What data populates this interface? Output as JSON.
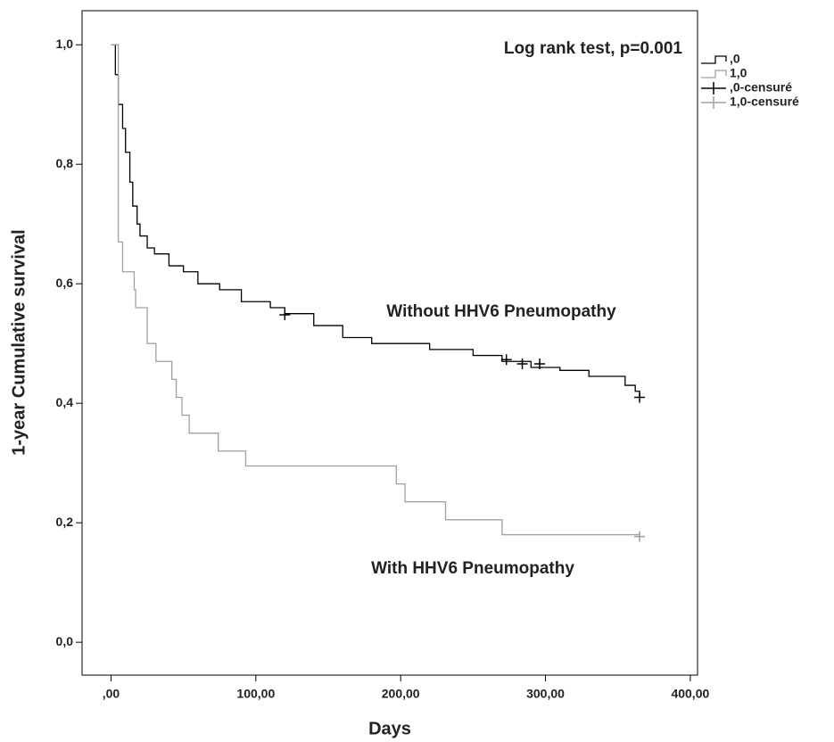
{
  "chart_data": {
    "type": "line",
    "step": true,
    "x_label": "Days",
    "y_label": "1-year Cumulative survival",
    "xlim": [
      -20,
      405
    ],
    "ylim": [
      -0.055,
      1.057
    ],
    "xticks": [
      {
        "value": 0,
        "label": ",00"
      },
      {
        "value": 100,
        "label": "100,00"
      },
      {
        "value": 200,
        "label": "200,00"
      },
      {
        "value": 300,
        "label": "300,00"
      },
      {
        "value": 400,
        "label": "400,00"
      }
    ],
    "yticks": [
      {
        "value": 0,
        "label": "0,0"
      },
      {
        "value": 0.2,
        "label": "0,2"
      },
      {
        "value": 0.4,
        "label": "0,4"
      },
      {
        "value": 0.6,
        "label": "0,6"
      },
      {
        "value": 0.8,
        "label": "0,8"
      },
      {
        "value": 1,
        "label": "1,0"
      }
    ],
    "annotations": [
      "Log rank test, p=0.001",
      "Without HHV6 Pneumopathy",
      "With HHV6 Pneumopathy"
    ],
    "series": [
      {
        "name": ",0",
        "color": "#000000",
        "marker": "step",
        "x": [
          0,
          3,
          5,
          8,
          10,
          13,
          15,
          18,
          20,
          25,
          30,
          40,
          50,
          60,
          75,
          90,
          110,
          120,
          140,
          160,
          180,
          220,
          250,
          270,
          290,
          310,
          330,
          355,
          362,
          365
        ],
        "values": [
          1.0,
          0.95,
          0.9,
          0.86,
          0.82,
          0.77,
          0.73,
          0.7,
          0.68,
          0.66,
          0.65,
          0.63,
          0.62,
          0.6,
          0.59,
          0.57,
          0.56,
          0.55,
          0.53,
          0.51,
          0.5,
          0.49,
          0.48,
          0.47,
          0.46,
          0.455,
          0.445,
          0.43,
          0.42,
          0.41
        ]
      },
      {
        "name": "1,0",
        "color": "#a0a0a0",
        "marker": "step",
        "x": [
          0,
          5,
          8,
          16,
          17,
          25,
          31,
          42,
          45,
          49,
          54,
          74,
          93,
          197,
          203,
          231,
          270,
          365
        ],
        "values": [
          1.0,
          0.67,
          0.62,
          0.59,
          0.56,
          0.5,
          0.47,
          0.44,
          0.41,
          0.38,
          0.35,
          0.32,
          0.295,
          0.265,
          0.235,
          0.205,
          0.18,
          0.18
        ]
      },
      {
        "name": ",0-censuré",
        "color": "#000000",
        "marker": "+",
        "x": [
          120,
          273,
          284,
          296,
          365
        ],
        "values": [
          0.548,
          0.473,
          0.466,
          0.466,
          0.41
        ]
      },
      {
        "name": "1,0-censuré",
        "color": "#a0a0a0",
        "marker": "+",
        "x": [
          365
        ],
        "values": [
          0.177
        ]
      }
    ]
  }
}
